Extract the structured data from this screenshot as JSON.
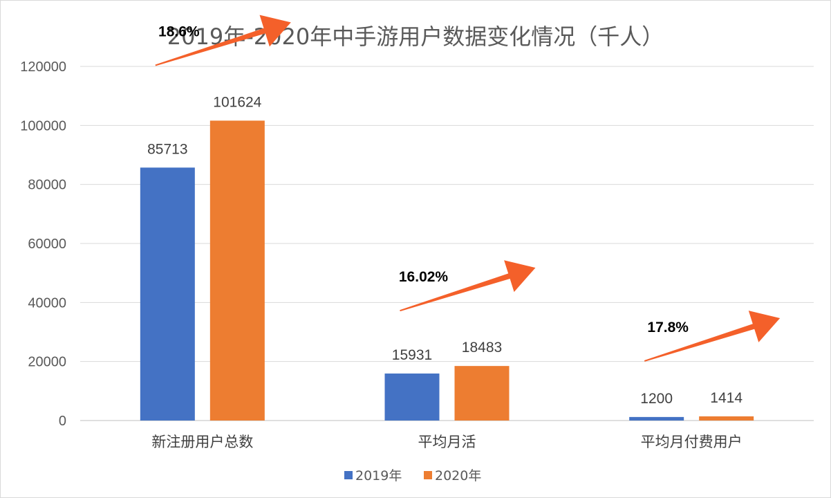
{
  "chart_data": {
    "type": "bar",
    "title": "2019年-2020年中手游用户数据变化情况（千人）",
    "categories": [
      "新注册用户总数",
      "平均月活",
      "平均月付费用户"
    ],
    "series": [
      {
        "name": "2019年",
        "values": [
          85713,
          15931,
          1200
        ],
        "color": "#4472C4"
      },
      {
        "name": "2020年",
        "values": [
          101624,
          18483,
          1414
        ],
        "color": "#ED7D31"
      }
    ],
    "ylim": [
      0,
      120000
    ],
    "yticks": [
      0,
      20000,
      40000,
      60000,
      80000,
      100000,
      120000
    ],
    "ytick_labels": [
      "0",
      "20000",
      "40000",
      "60000",
      "80000",
      "100000",
      "120000"
    ],
    "data_labels": [
      [
        "85713",
        "15931",
        "1200"
      ],
      [
        "101624",
        "18483",
        "1414"
      ]
    ],
    "growth_annotations": [
      "18.6%",
      "16.02%",
      "17.8%"
    ],
    "arrow_color": "#F4602A",
    "grid": true,
    "legend_position": "bottom"
  }
}
